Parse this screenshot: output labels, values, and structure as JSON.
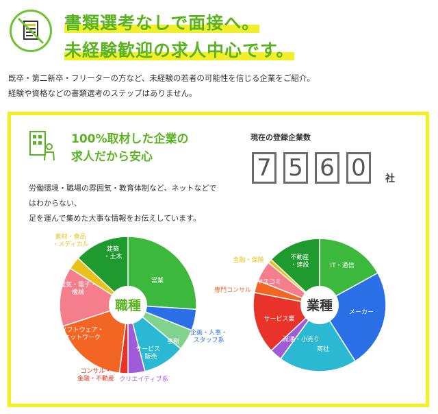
{
  "header": {
    "headline_line1": "書類選考なしで面接へ。",
    "headline_line2": "未経験歓迎の求人中心です。",
    "icon": "no-document-icon"
  },
  "intro": {
    "line1": "既卒・第二新卒・フリーターの方など、未経験の若者の可能性を信じる企業をご紹介。",
    "line2": "経験や資格などの書類選考のステップはありません。"
  },
  "panel": {
    "icon": "building-person-icon",
    "title_line1": "100%取材した企業の",
    "title_line2": "求人だから安心",
    "count_label": "現在の登録企業数",
    "count_digits": [
      "7",
      "5",
      "6",
      "0"
    ],
    "count_unit": "社",
    "desc_line1": "労働環境・職場の雰囲気・教育体制など、ネットなどで",
    "desc_line2": "はわからない、",
    "desc_line3": "足を運んで集めた大事な情報をお伝えしています。"
  },
  "colors": {
    "accent_green": "#5ab320",
    "highlight_yellow": "#f1ef2a",
    "panel_border": "#f4ef1f"
  },
  "chart_data": [
    {
      "type": "pie",
      "title": "職種",
      "unit": "percent",
      "slices": [
        {
          "label": "営業",
          "value": 26,
          "color": "#3cb93c"
        },
        {
          "label": "企画・人事・スタッフ系",
          "value": 5,
          "color": "#2a6fe6"
        },
        {
          "label": "事務",
          "value": 5,
          "color": "#7fd38c"
        },
        {
          "label": "サービス・販売",
          "value": 10,
          "color": "#2ab8d2"
        },
        {
          "label": "クリエイティブ系",
          "value": 4,
          "color": "#a05bd8"
        },
        {
          "label": "コンサル・金融・不動産",
          "value": 2,
          "color": "#e8332b"
        },
        {
          "label": "ソフトウェア・ネットワーク",
          "value": 18,
          "color": "#f26522"
        },
        {
          "label": "電気・電子・機械",
          "value": 14,
          "color": "#f47e8c"
        },
        {
          "label": "素材・食品・メディカル",
          "value": 3,
          "color": "#e8c21a"
        },
        {
          "label": "建築・土木",
          "value": 13,
          "color": "#1f9a2e"
        }
      ]
    },
    {
      "type": "pie",
      "title": "業種",
      "unit": "percent",
      "slices": [
        {
          "label": "IT・通信",
          "value": 17,
          "color": "#3cb93c"
        },
        {
          "label": "メーカー",
          "value": 24,
          "color": "#2a6fe6"
        },
        {
          "label": "商社",
          "value": 19,
          "color": "#2ab8d2"
        },
        {
          "label": "流通・小売り",
          "value": 3,
          "color": "#a05bd8"
        },
        {
          "label": "サービス業",
          "value": 15,
          "color": "#e8332b"
        },
        {
          "label": "専門コンサル",
          "value": 3,
          "color": "#f26522"
        },
        {
          "label": "マスコミ",
          "value": 5,
          "color": "#f47e8c"
        },
        {
          "label": "金融・保険",
          "value": 1,
          "color": "#e8c21a"
        },
        {
          "label": "不動産・建設",
          "value": 13,
          "color": "#1f9a2e"
        }
      ]
    }
  ]
}
